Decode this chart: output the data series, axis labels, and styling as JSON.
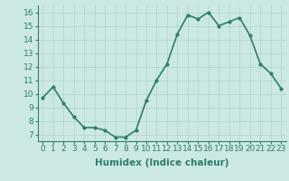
{
  "x": [
    0,
    1,
    2,
    3,
    4,
    5,
    6,
    7,
    8,
    9,
    10,
    11,
    12,
    13,
    14,
    15,
    16,
    17,
    18,
    19,
    20,
    21,
    22,
    23
  ],
  "y": [
    9.7,
    10.5,
    9.3,
    8.3,
    7.5,
    7.5,
    7.3,
    6.8,
    6.8,
    7.3,
    9.5,
    11.0,
    12.2,
    14.4,
    15.8,
    15.5,
    16.0,
    15.0,
    15.3,
    15.6,
    14.3,
    12.2,
    11.5,
    10.4
  ],
  "line_color": "#2e7d6e",
  "marker": "o",
  "marker_size": 2,
  "line_width": 1.2,
  "bg_color": "#cce8e4",
  "grid_color": "#aed4cf",
  "xlabel": "Humidex (Indice chaleur)",
  "xlabel_fontsize": 7.5,
  "tick_fontsize": 6.5,
  "ylim": [
    6.5,
    16.5
  ],
  "yticks": [
    7,
    8,
    9,
    10,
    11,
    12,
    13,
    14,
    15,
    16
  ],
  "xlim": [
    -0.5,
    23.5
  ],
  "xticks": [
    0,
    1,
    2,
    3,
    4,
    5,
    6,
    7,
    8,
    9,
    10,
    11,
    12,
    13,
    14,
    15,
    16,
    17,
    18,
    19,
    20,
    21,
    22,
    23
  ]
}
